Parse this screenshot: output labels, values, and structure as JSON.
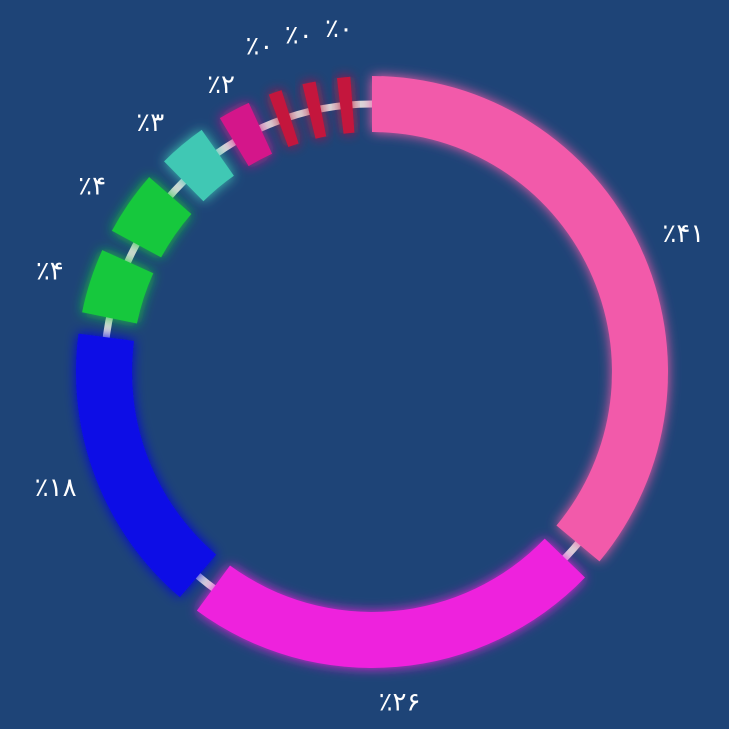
{
  "chart_data": {
    "type": "pie",
    "style": "donut",
    "background": "#1e4477",
    "track_color": "#d9d9d9",
    "slices": [
      {
        "label": "٪۴۱",
        "value": 41,
        "color": "#f25aaa",
        "label_side": "right"
      },
      {
        "label": "٪۲۶",
        "value": 26,
        "color": "#ee22dd",
        "label_side": "bottom"
      },
      {
        "label": "٪۱۸",
        "value": 18,
        "color": "#1010e6",
        "label_side": "left"
      },
      {
        "label": "٪۴",
        "value": 4,
        "color": "#18c83c",
        "label_side": "left"
      },
      {
        "label": "٪۴",
        "value": 4,
        "color": "#18c83c",
        "label_side": "left"
      },
      {
        "label": "٪۳",
        "value": 3,
        "color": "#40c8b4",
        "label_side": "left"
      },
      {
        "label": "٪۲",
        "value": 2,
        "color": "#d4168a",
        "label_side": "top"
      },
      {
        "label": "٪۰",
        "value": 0,
        "color": "#c4143c",
        "label_side": "top"
      },
      {
        "label": "٪۰",
        "value": 0,
        "color": "#c4143c",
        "label_side": "top"
      },
      {
        "label": "٪۰",
        "value": 0,
        "color": "#c4143c",
        "label_side": "top"
      }
    ]
  }
}
